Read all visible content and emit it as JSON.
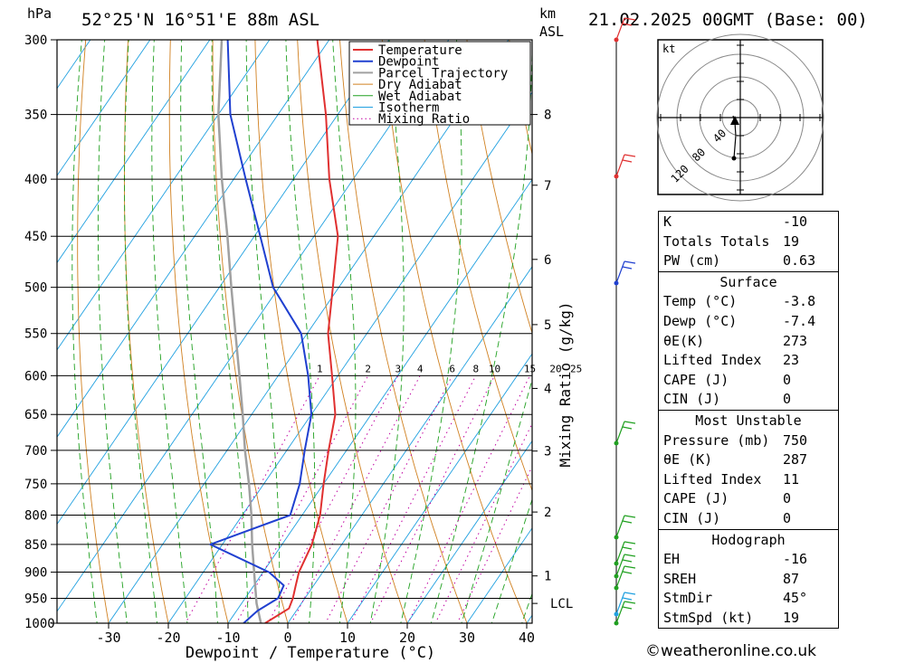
{
  "header": {
    "location": "52°25'N 16°51'E 88m ASL",
    "datetime": "21.02.2025 00GMT (Base: 00)",
    "unit_left": "hPa",
    "unit_right_1": "km",
    "unit_right_2": "ASL"
  },
  "chart_data": {
    "type": "skew-t",
    "xlabel": "Dewpoint / Temperature (°C)",
    "ylabel_right": "Mixing Ratio (g/kg)",
    "pressure_ticks": [
      300,
      350,
      400,
      450,
      500,
      550,
      600,
      650,
      700,
      750,
      800,
      850,
      900,
      950,
      1000
    ],
    "temp_ticks": [
      -30,
      -20,
      -10,
      0,
      10,
      20,
      30,
      40
    ],
    "km_ticks": [
      {
        "label": "8",
        "p": 350
      },
      {
        "label": "7",
        "p": 405
      },
      {
        "label": "6",
        "p": 472
      },
      {
        "label": "5",
        "p": 540
      },
      {
        "label": "4",
        "p": 616
      },
      {
        "label": "3",
        "p": 701
      },
      {
        "label": "2",
        "p": 795
      },
      {
        "label": "1",
        "p": 907
      },
      {
        "label": "LCL",
        "p": 960
      }
    ],
    "mixing_ratio_labels": [
      "1",
      "2",
      "3",
      "4",
      "6",
      "8",
      "10",
      "15",
      "20",
      "25"
    ],
    "legend": [
      "Temperature",
      "Dewpoint",
      "Parcel Trajectory",
      "Dry Adiabat",
      "Wet Adiabat",
      "Isotherm",
      "Mixing Ratio"
    ],
    "temperature": [
      {
        "p": 1000,
        "t": -3.8
      },
      {
        "p": 970,
        "t": -1.5
      },
      {
        "p": 950,
        "t": -2.0
      },
      {
        "p": 925,
        "t": -3.0
      },
      {
        "p": 900,
        "t": -4.0
      },
      {
        "p": 850,
        "t": -5.0
      },
      {
        "p": 800,
        "t": -7.0
      },
      {
        "p": 750,
        "t": -10.0
      },
      {
        "p": 700,
        "t": -13.0
      },
      {
        "p": 650,
        "t": -16.0
      },
      {
        "p": 600,
        "t": -21.0
      },
      {
        "p": 550,
        "t": -26.5
      },
      {
        "p": 500,
        "t": -31.0
      },
      {
        "p": 450,
        "t": -36.0
      },
      {
        "p": 400,
        "t": -44.0
      },
      {
        "p": 350,
        "t": -52.0
      },
      {
        "p": 300,
        "t": -62.0
      }
    ],
    "dewpoint": [
      {
        "p": 1000,
        "t": -7.4
      },
      {
        "p": 975,
        "t": -6.5
      },
      {
        "p": 950,
        "t": -4.5
      },
      {
        "p": 925,
        "t": -5.0
      },
      {
        "p": 900,
        "t": -9.0
      },
      {
        "p": 850,
        "t": -22.0
      },
      {
        "p": 800,
        "t": -12.0
      },
      {
        "p": 750,
        "t": -14.0
      },
      {
        "p": 700,
        "t": -17.0
      },
      {
        "p": 650,
        "t": -20.0
      },
      {
        "p": 600,
        "t": -25.0
      },
      {
        "p": 550,
        "t": -31.0
      },
      {
        "p": 500,
        "t": -41.0
      },
      {
        "p": 450,
        "t": -49.0
      },
      {
        "p": 400,
        "t": -58.0
      },
      {
        "p": 350,
        "t": -68.0
      },
      {
        "p": 300,
        "t": -77.0
      }
    ],
    "parcel": [
      {
        "p": 1000,
        "t": -4.5
      },
      {
        "p": 960,
        "t": -7.5
      },
      {
        "p": 900,
        "t": -11.5
      },
      {
        "p": 850,
        "t": -15.0
      },
      {
        "p": 800,
        "t": -18.5
      },
      {
        "p": 750,
        "t": -22.5
      },
      {
        "p": 700,
        "t": -27.0
      },
      {
        "p": 650,
        "t": -31.5
      },
      {
        "p": 600,
        "t": -36.5
      },
      {
        "p": 550,
        "t": -42.0
      },
      {
        "p": 500,
        "t": -48.0
      },
      {
        "p": 450,
        "t": -54.5
      },
      {
        "p": 400,
        "t": -62.0
      },
      {
        "p": 350,
        "t": -70.0
      },
      {
        "p": 300,
        "t": -78.0
      }
    ],
    "hodograph": {
      "unit": "kt",
      "ring_labels": [
        "40",
        "80",
        "120"
      ]
    }
  },
  "indices": {
    "general": [
      {
        "label": "K",
        "value": "-10"
      },
      {
        "label": "Totals Totals",
        "value": "19"
      },
      {
        "label": "PW (cm)",
        "value": "0.63"
      }
    ],
    "surface": {
      "title": "Surface",
      "rows": [
        {
          "label": "Temp (°C)",
          "value": "-3.8"
        },
        {
          "label": "Dewp (°C)",
          "value": "-7.4"
        },
        {
          "label": "θE(K)",
          "value": "273"
        },
        {
          "label": "Lifted Index",
          "value": "23"
        },
        {
          "label": "CAPE (J)",
          "value": "0"
        },
        {
          "label": "CIN (J)",
          "value": "0"
        }
      ]
    },
    "most_unstable": {
      "title": "Most Unstable",
      "rows": [
        {
          "label": "Pressure (mb)",
          "value": "750"
        },
        {
          "label": "θE (K)",
          "value": "287"
        },
        {
          "label": "Lifted Index",
          "value": "11"
        },
        {
          "label": "CAPE (J)",
          "value": "0"
        },
        {
          "label": "CIN (J)",
          "value": "0"
        }
      ]
    },
    "hodograph": {
      "title": "Hodograph",
      "rows": [
        {
          "label": "EH",
          "value": "-16"
        },
        {
          "label": "SREH",
          "value": "87"
        },
        {
          "label": "StmDir",
          "value": "45°"
        },
        {
          "label": "StmSpd (kt)",
          "value": "19"
        }
      ]
    }
  },
  "credit": "©weatheronline.co.uk",
  "colors": {
    "temperature": "#e03030",
    "dewpoint": "#2040d0",
    "parcel": "#a0a0a0",
    "dry_adiabat": "#d08020",
    "wet_adiabat": "#20a020",
    "isotherm": "#20a0e0",
    "mixing_ratio": "#c000a0"
  }
}
